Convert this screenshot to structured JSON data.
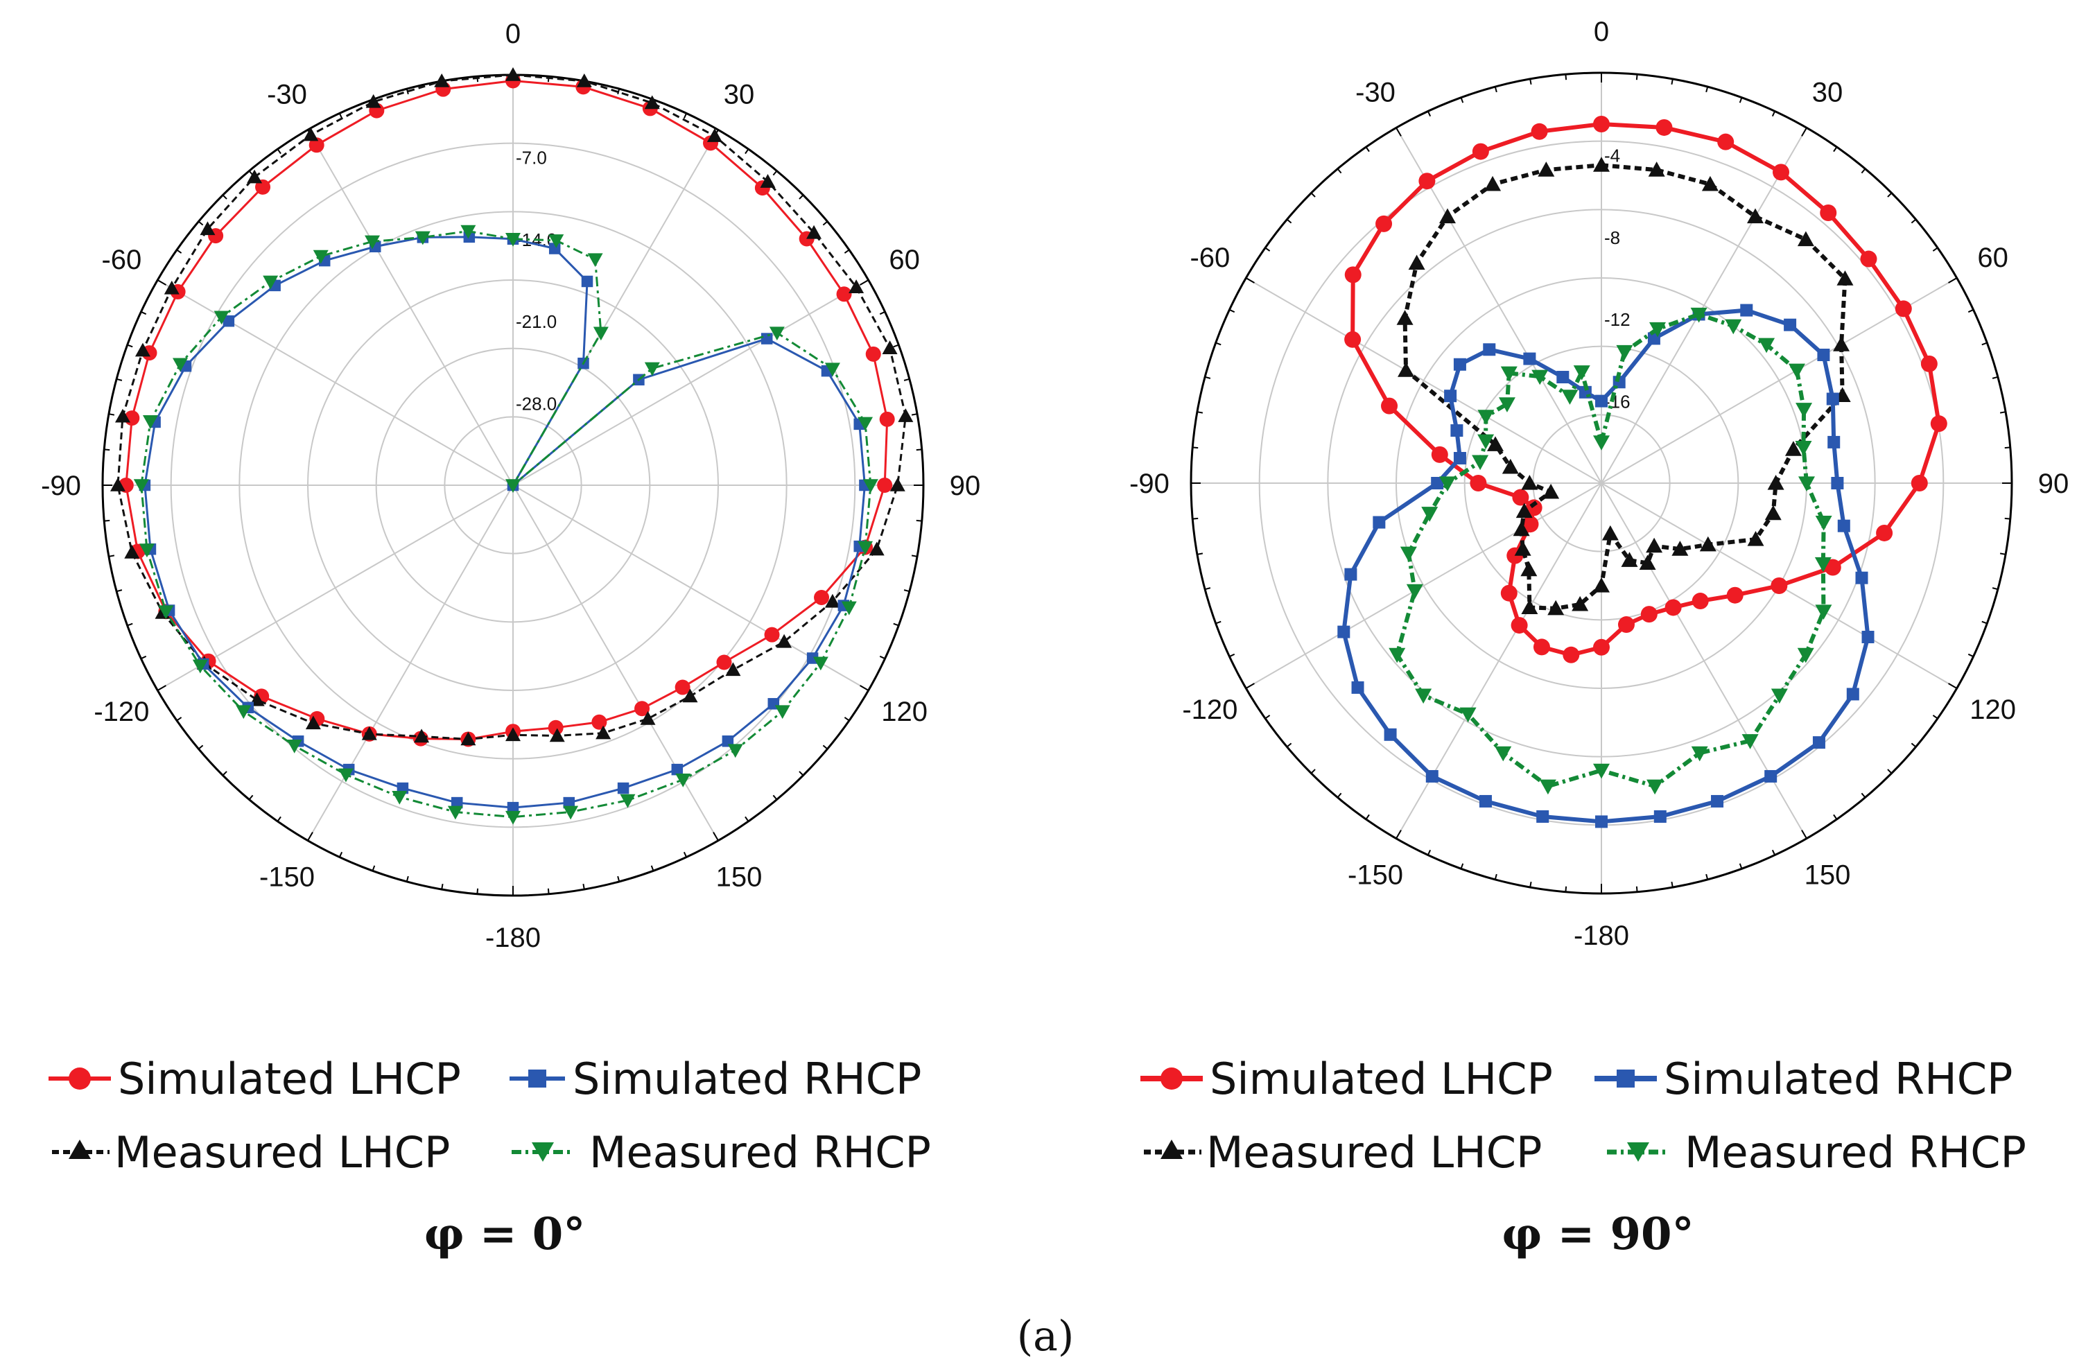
{
  "figure_caption": "(a)",
  "legend": {
    "sim_lhcp": "Simulated LHCP",
    "sim_rhcp": "Simulated RHCP",
    "meas_lhcp": "Measured LHCP",
    "meas_rhcp": "Measured RHCP"
  },
  "colors": {
    "sim_lhcp": "#ee1c24",
    "sim_rhcp": "#2a58b0",
    "meas_lhcp": "#111111",
    "meas_rhcp": "#138a36",
    "grid": "#c8c8c8",
    "frame": "#000000"
  },
  "chart_data": [
    {
      "type": "polar",
      "subtitle": "φ = 0°",
      "angular_tick_labels": [
        "0",
        "30",
        "60",
        "90",
        "120",
        "150",
        "-180",
        "-150",
        "-120",
        "-90",
        "-60",
        "-30"
      ],
      "radial_axis": {
        "unit": "dB",
        "min": -35,
        "max": 0,
        "ring_labels": [
          "-7.0",
          "-14.0",
          "-21.0",
          "-28.0"
        ],
        "ring_values": [
          -7,
          -14,
          -21,
          -28
        ]
      },
      "series": [
        {
          "name": "Simulated LHCP",
          "style": "solid-circle",
          "angles": [
            0,
            10,
            20,
            30,
            40,
            50,
            60,
            70,
            80,
            90,
            100,
            110,
            120,
            130,
            140,
            150,
            160,
            170,
            180,
            190,
            200,
            210,
            220,
            230,
            240,
            250,
            260,
            270,
            280,
            290,
            300,
            310,
            320,
            330,
            340,
            350
          ],
          "values": [
            -0.5,
            -0.5,
            -0.8,
            -1.3,
            -1.9,
            -2.3,
            -2.4,
            -2.3,
            -2.6,
            -3.3,
            -4.5,
            -7.0,
            -9.5,
            -11.5,
            -12.5,
            -13.0,
            -13.5,
            -14.0,
            -14.0,
            -13.0,
            -12.0,
            -10.5,
            -9.0,
            -7.0,
            -5.0,
            -3.5,
            -2.5,
            -2.0,
            -2.0,
            -2.0,
            -2.0,
            -1.9,
            -1.8,
            -1.5,
            -1.0,
            -0.7
          ]
        },
        {
          "name": "Measured LHCP",
          "style": "dash-triangle",
          "angles": [
            0,
            10,
            20,
            30,
            40,
            50,
            60,
            70,
            80,
            90,
            100,
            110,
            120,
            130,
            140,
            150,
            160,
            170,
            180,
            190,
            200,
            210,
            220,
            230,
            240,
            250,
            260,
            270,
            280,
            290,
            300,
            310,
            320,
            330,
            340,
            350
          ],
          "values": [
            0.3,
            0.0,
            -0.3,
            -0.6,
            -1.2,
            -1.5,
            -1.2,
            -0.8,
            -1.0,
            -2.2,
            -3.5,
            -6.0,
            -8.3,
            -10.5,
            -11.5,
            -12.0,
            -12.5,
            -13.3,
            -13.7,
            -13.0,
            -12.2,
            -10.5,
            -8.5,
            -6.5,
            -4.6,
            -3.2,
            -2.0,
            -1.3,
            -1.2,
            -1.4,
            -1.4,
            -1.0,
            -0.7,
            -0.5,
            -0.2,
            0.0
          ]
        },
        {
          "name": "Simulated RHCP",
          "style": "solid-square",
          "angles": [
            0,
            10,
            20,
            30,
            40,
            50,
            60,
            70,
            80,
            90,
            100,
            110,
            120,
            130,
            140,
            150,
            160,
            170,
            180,
            190,
            200,
            210,
            220,
            230,
            240,
            250,
            260,
            270,
            280,
            290,
            300,
            310,
            320,
            330,
            340,
            350
          ],
          "values": [
            -14.0,
            -14.5,
            -16.5,
            -23.0,
            -35.0,
            -21.0,
            -10.0,
            -6.5,
            -5.0,
            -5.0,
            -5.0,
            -5.0,
            -5.5,
            -6.0,
            -6.5,
            -7.0,
            -7.5,
            -7.5,
            -7.5,
            -7.5,
            -7.5,
            -7.0,
            -6.5,
            -5.5,
            -4.5,
            -3.8,
            -3.6,
            -3.6,
            -4.0,
            -5.3,
            -7.0,
            -8.5,
            -10.0,
            -11.5,
            -12.5,
            -13.5
          ]
        },
        {
          "name": "Measured RHCP",
          "style": "dashdot-invtriangle",
          "angles": [
            0,
            10,
            20,
            30,
            40,
            50,
            60,
            70,
            80,
            90,
            100,
            110,
            120,
            130,
            140,
            150,
            160,
            170,
            180,
            190,
            200,
            210,
            220,
            230,
            240,
            250,
            260,
            270,
            280,
            290,
            300,
            310,
            320,
            330,
            340,
            350
          ],
          "values": [
            -14.0,
            -13.8,
            -14.5,
            -20.0,
            -35.0,
            -19.5,
            -9.0,
            -6.0,
            -4.5,
            -4.5,
            -4.5,
            -4.5,
            -4.7,
            -5.0,
            -5.5,
            -6.0,
            -6.4,
            -6.7,
            -6.7,
            -6.7,
            -6.7,
            -6.5,
            -6.0,
            -5.0,
            -4.2,
            -3.5,
            -3.3,
            -3.3,
            -3.6,
            -4.8,
            -6.3,
            -8.0,
            -9.5,
            -11.0,
            -12.5,
            -13.0
          ]
        }
      ]
    },
    {
      "type": "polar",
      "subtitle": "φ = 90°",
      "angular_tick_labels": [
        "0",
        "30",
        "60",
        "90",
        "120",
        "150",
        "-180",
        "-150",
        "-120",
        "-90",
        "-60",
        "-30"
      ],
      "radial_axis": {
        "unit": "dB",
        "min": -20,
        "max": 0,
        "ring_labels": [
          "-4",
          "-8",
          "-12",
          "-16"
        ],
        "ring_values": [
          -4,
          -8,
          -12,
          -16
        ]
      },
      "series": [
        {
          "name": "Simulated LHCP",
          "style": "solid-circle-thick",
          "angles": [
            0,
            10,
            20,
            30,
            40,
            50,
            60,
            70,
            80,
            90,
            100,
            110,
            120,
            130,
            140,
            150,
            160,
            170,
            180,
            190,
            200,
            210,
            220,
            230,
            240,
            250,
            260,
            270,
            280,
            290,
            300,
            310,
            320,
            330,
            340,
            350
          ],
          "values": [
            -2.5,
            -2.4,
            -2.3,
            -2.5,
            -2.8,
            -3.0,
            -3.0,
            -3.0,
            -3.3,
            -4.5,
            -6.0,
            -8.0,
            -10.0,
            -11.5,
            -12.5,
            -13.0,
            -13.2,
            -13.0,
            -12.0,
            -11.5,
            -11.5,
            -12.0,
            -13.0,
            -14.5,
            -16.0,
            -16.5,
            -16.0,
            -14.0,
            -12.0,
            -9.0,
            -6.0,
            -4.2,
            -3.5,
            -3.0,
            -2.8,
            -2.6
          ]
        },
        {
          "name": "Measured LHCP",
          "style": "dash-triangle-thick",
          "angles": [
            0,
            10,
            20,
            30,
            40,
            50,
            60,
            70,
            80,
            90,
            100,
            110,
            120,
            130,
            140,
            150,
            160,
            170,
            180,
            190,
            200,
            210,
            220,
            230,
            240,
            250,
            260,
            270,
            280,
            290,
            300,
            310,
            320,
            330,
            340,
            350
          ],
          "values": [
            -4.5,
            -4.5,
            -4.5,
            -5.0,
            -4.5,
            -4.5,
            -6.5,
            -7.5,
            -10.5,
            -11.5,
            -11.5,
            -12.0,
            -14.0,
            -15.0,
            -16.0,
            -15.5,
            -16.0,
            -17.5,
            -15.0,
            -14.0,
            -13.5,
            -13.0,
            -14.5,
            -15.0,
            -15.5,
            -16.0,
            -17.5,
            -16.5,
            -15.5,
            -14.5,
            -9.0,
            -7.5,
            -6.0,
            -5.0,
            -4.5,
            -4.5
          ]
        },
        {
          "name": "Simulated RHCP",
          "style": "solid-square-thick",
          "angles": [
            0,
            10,
            20,
            30,
            40,
            50,
            60,
            70,
            80,
            90,
            100,
            110,
            120,
            130,
            140,
            150,
            160,
            170,
            180,
            190,
            200,
            210,
            220,
            230,
            240,
            250,
            260,
            270,
            280,
            290,
            300,
            310,
            320,
            330,
            340,
            350
          ],
          "values": [
            -16.0,
            -15.0,
            -12.5,
            -10.5,
            -9.0,
            -8.0,
            -7.5,
            -8.0,
            -8.5,
            -8.5,
            -8.0,
            -6.5,
            -5.0,
            -4.0,
            -3.5,
            -3.5,
            -3.5,
            -3.5,
            -3.5,
            -3.5,
            -3.5,
            -3.5,
            -4.0,
            -4.5,
            -5.5,
            -7.0,
            -9.0,
            -12.0,
            -13.0,
            -12.5,
            -11.5,
            -11.0,
            -11.5,
            -13.0,
            -14.5,
            -15.5
          ]
        },
        {
          "name": "Measured RHCP",
          "style": "dashdot-invtriangle-thick",
          "angles": [
            0,
            10,
            20,
            30,
            40,
            50,
            60,
            70,
            80,
            90,
            100,
            110,
            120,
            130,
            140,
            150,
            160,
            170,
            180,
            190,
            200,
            210,
            220,
            230,
            240,
            250,
            260,
            270,
            280,
            290,
            300,
            310,
            320,
            330,
            340,
            350
          ],
          "values": [
            -18.0,
            -13.5,
            -12.0,
            -10.5,
            -10.0,
            -9.5,
            -9.0,
            -9.5,
            -10.0,
            -10.0,
            -9.0,
            -8.5,
            -7.5,
            -7.0,
            -6.5,
            -5.5,
            -6.0,
            -5.0,
            -6.0,
            -5.0,
            -6.0,
            -7.0,
            -6.5,
            -7.0,
            -9.5,
            -10.0,
            -11.5,
            -12.5,
            -14.0,
            -14.0,
            -13.5,
            -14.0,
            -13.0,
            -14.0,
            -15.5,
            -14.5
          ]
        }
      ]
    }
  ]
}
